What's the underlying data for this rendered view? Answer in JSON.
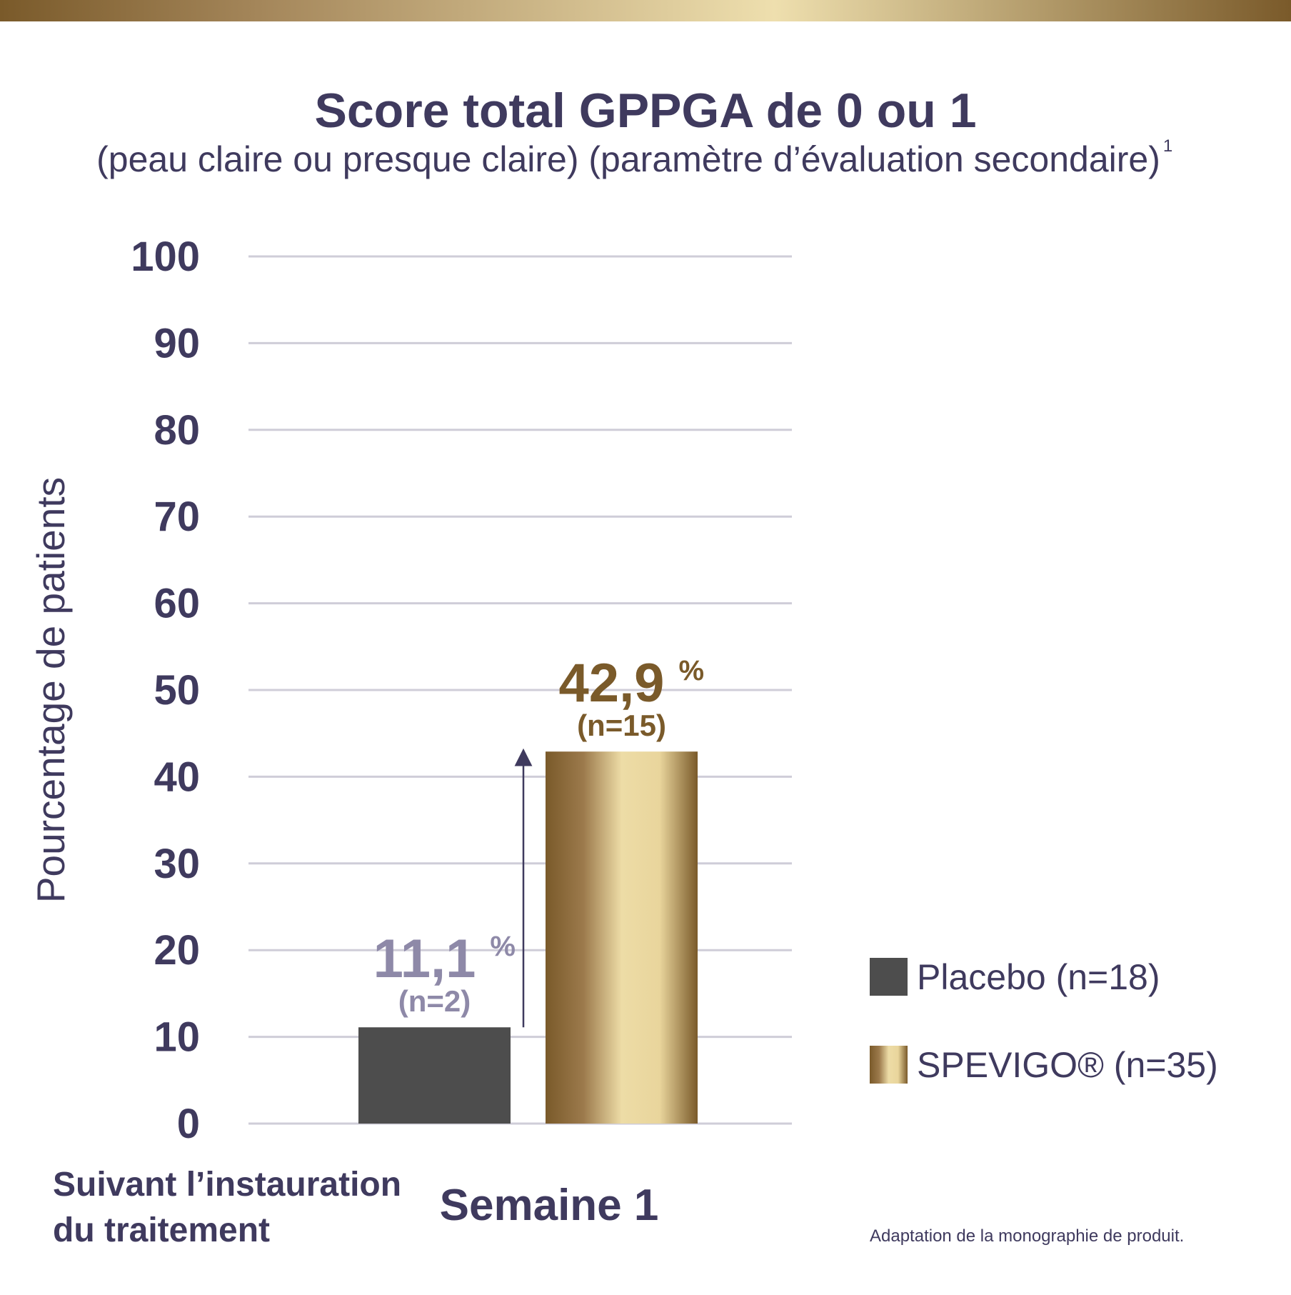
{
  "chart_data": {
    "type": "bar",
    "title": "Score total GPPGA de 0 ou 1",
    "subtitle": "(peau claire ou presque claire) (paramètre d’évaluation secondaire)",
    "subtitle_ref": "1",
    "ylabel": "Pourcentage de patients",
    "xlabel": [
      "Suivant l’instauration",
      "du traitement"
    ],
    "categories": [
      "Semaine 1"
    ],
    "series": [
      {
        "name": "Placebo (n=18)",
        "color": "#4d4d4d",
        "label_color": "#8e89a8",
        "values": [
          11.1
        ],
        "value_labels": [
          "11,1"
        ],
        "value_unit": "%",
        "counts": [
          "(n=2)"
        ]
      },
      {
        "name": "SPEVIGO® (n=35)",
        "color": "#7a5a2a",
        "label_color": "#7a5a2a",
        "gradient": [
          "#7a5a2a",
          "#9c7a4c",
          "#eddca6",
          "#e9d59c",
          "#7a5a2a"
        ],
        "values": [
          42.9
        ],
        "value_labels": [
          "42,9"
        ],
        "value_unit": "%",
        "counts": [
          "(n=15)"
        ]
      }
    ],
    "ylim": [
      0,
      100
    ],
    "yticks": [
      0,
      10,
      20,
      30,
      40,
      50,
      60,
      70,
      80,
      90,
      100
    ],
    "grid": true,
    "legend": "right",
    "source": "Adaptation de la monographie de produit."
  }
}
